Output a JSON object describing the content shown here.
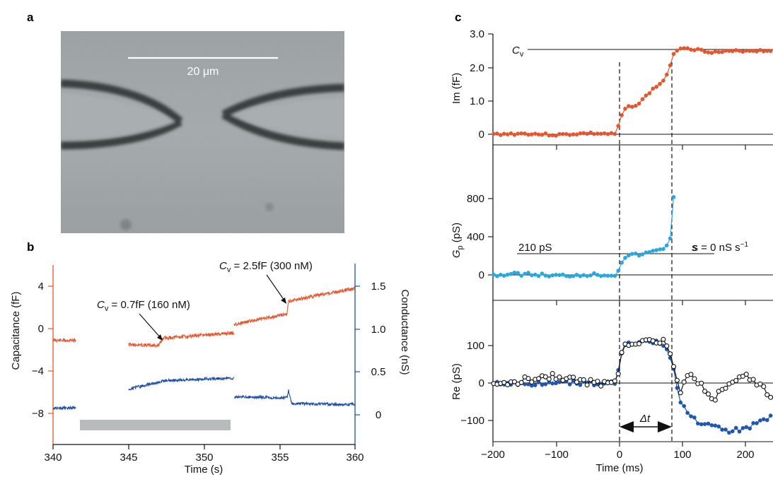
{
  "panel_labels": {
    "a": "a",
    "b": "b",
    "c": "c"
  },
  "colors": {
    "capacitance": "#e4572e",
    "conductance": "#1f4fa8",
    "gp": "#2aa7df",
    "re_blue": "#1f56b0",
    "re_open": "#111111",
    "shade": "#b8bbbc"
  },
  "micrograph": {
    "scale_bar_label": "20 μm"
  },
  "panel_b": {
    "left_axis_title": "Capacitance (fF)",
    "right_axis_title": "Conductance (nS)",
    "x_axis_title": "Time (s)",
    "x_ticks": [
      "340",
      "345",
      "350",
      "355",
      "360"
    ],
    "left_ticks": [
      "4",
      "0",
      "−4",
      "−8"
    ],
    "right_ticks": [
      "1.5",
      "1.0",
      "0.5",
      "0"
    ],
    "annotation_1": "C",
    "annotation_1_sub": "v",
    "annotation_1_rest": " = 0.7fF (160 nM)",
    "annotation_2": "C",
    "annotation_2_sub": "v",
    "annotation_2_rest": " = 2.5fF (300 nM)"
  },
  "panel_c": {
    "top_axis_title": "Im (fF)",
    "top_ticks": [
      "3.0",
      "2.0",
      "1.0",
      "0"
    ],
    "top_line_label": "C",
    "top_line_label_sub": "v",
    "mid_axis_title": "G",
    "mid_axis_title_sub": "p",
    "mid_axis_title_rest": " (pS)",
    "mid_ticks": [
      "800",
      "400",
      "0"
    ],
    "mid_line_label": "210 pS",
    "mid_slope_label": "s = 0 nS s",
    "mid_slope_sup": "−1",
    "bot_axis_title": "Re (pS)",
    "bot_ticks": [
      "100",
      "0",
      "−100"
    ],
    "delta_label": "Δt",
    "x_axis_title": "Time (ms)",
    "x_ticks": [
      "−200",
      "−100",
      "0",
      "100",
      "200"
    ]
  },
  "chart_data": [
    {
      "type": "line",
      "panel": "b",
      "xlabel": "Time (s)",
      "ylabel": "Capacitance (fF)",
      "y2label": "Conductance (nS)",
      "xlim": [
        340,
        360
      ],
      "ylim": [
        -10,
        6
      ],
      "y2lim": [
        -0.2,
        1.7
      ],
      "series": [
        {
          "name": "",
          "axis": "left",
          "segments": [
            [
              [
                340,
                -1.1
              ],
              [
                341.5,
                -1.1
              ]
            ],
            [
              [
                345,
                -1.5
              ],
              [
                347.0,
                -1.6
              ],
              [
                347.3,
                -0.9
              ],
              [
                352.0,
                -0.4
              ]
            ],
            [
              [
                352,
                0.4
              ],
              [
                355.5,
                1.4
              ],
              [
                355.6,
                2.6
              ],
              [
                360,
                3.8
              ]
            ]
          ]
        },
        {
          "name": "",
          "axis": "right",
          "segments": [
            [
              [
                340,
                0.08
              ],
              [
                341.5,
                0.08
              ]
            ],
            [
              [
                345,
                0.3
              ],
              [
                347.5,
                0.4
              ],
              [
                352.0,
                0.43
              ]
            ],
            [
              [
                352,
                0.21
              ],
              [
                355.5,
                0.2
              ],
              [
                355.6,
                0.28
              ],
              [
                355.8,
                0.13
              ],
              [
                360,
                0.12
              ]
            ]
          ]
        }
      ],
      "shaded_interval": [
        341.6,
        351.6
      ]
    },
    {
      "type": "scatter",
      "panel": "c",
      "xlabel": "Time (ms)",
      "ylabel": "Im (fF)",
      "xlim": [
        -200,
        250
      ],
      "ylim": [
        -0.2,
        3.0
      ],
      "reference_level": 2.5,
      "series": [
        {
          "name": "",
          "points": [
            [
              -200,
              0.0
            ],
            [
              -150,
              0.02
            ],
            [
              -100,
              -0.02
            ],
            [
              -50,
              0.03
            ],
            [
              -5,
              0.0
            ],
            [
              0,
              0.4
            ],
            [
              10,
              0.8
            ],
            [
              30,
              0.9
            ],
            [
              50,
              1.3
            ],
            [
              70,
              1.6
            ],
            [
              80,
              2.0
            ],
            [
              88,
              2.5
            ],
            [
              100,
              2.6
            ],
            [
              150,
              2.45
            ],
            [
              200,
              2.5
            ],
            [
              245,
              2.5
            ]
          ]
        }
      ]
    },
    {
      "type": "scatter",
      "panel": "c",
      "ylabel": "Gp (pS)",
      "xlim": [
        -200,
        250
      ],
      "ylim": [
        -100,
        1000
      ],
      "reference_level": 210,
      "series": [
        {
          "name": "",
          "points": [
            [
              -200,
              0
            ],
            [
              -150,
              10
            ],
            [
              -100,
              -10
            ],
            [
              -50,
              5
            ],
            [
              -5,
              0
            ],
            [
              0,
              100
            ],
            [
              10,
              200
            ],
            [
              40,
              220
            ],
            [
              60,
              260
            ],
            [
              75,
              300
            ],
            [
              82,
              420
            ],
            [
              86,
              820
            ]
          ]
        }
      ]
    },
    {
      "type": "scatter",
      "panel": "c",
      "ylabel": "Re (pS)",
      "xlim": [
        -200,
        250
      ],
      "ylim": [
        -150,
        150
      ],
      "delta_t_interval": [
        0,
        87
      ],
      "series": [
        {
          "name": "",
          "points": [
            [
              -200,
              0
            ],
            [
              -150,
              -5
            ],
            [
              -100,
              5
            ],
            [
              -50,
              0
            ],
            [
              -5,
              0
            ],
            [
              5,
              100
            ],
            [
              40,
              110
            ],
            [
              70,
              105
            ],
            [
              85,
              50
            ],
            [
              95,
              -50
            ],
            [
              120,
              -100
            ],
            [
              170,
              -130
            ],
            [
              200,
              -120
            ],
            [
              245,
              -90
            ]
          ]
        },
        {
          "name": "",
          "points": [
            [
              -200,
              -10
            ],
            [
              -150,
              10
            ],
            [
              -100,
              20
            ],
            [
              -50,
              0
            ],
            [
              -5,
              0
            ],
            [
              5,
              105
            ],
            [
              40,
              115
            ],
            [
              70,
              110
            ],
            [
              85,
              60
            ],
            [
              95,
              -30
            ],
            [
              110,
              20
            ],
            [
              150,
              -40
            ],
            [
              200,
              20
            ],
            [
              245,
              -40
            ]
          ]
        }
      ]
    }
  ]
}
